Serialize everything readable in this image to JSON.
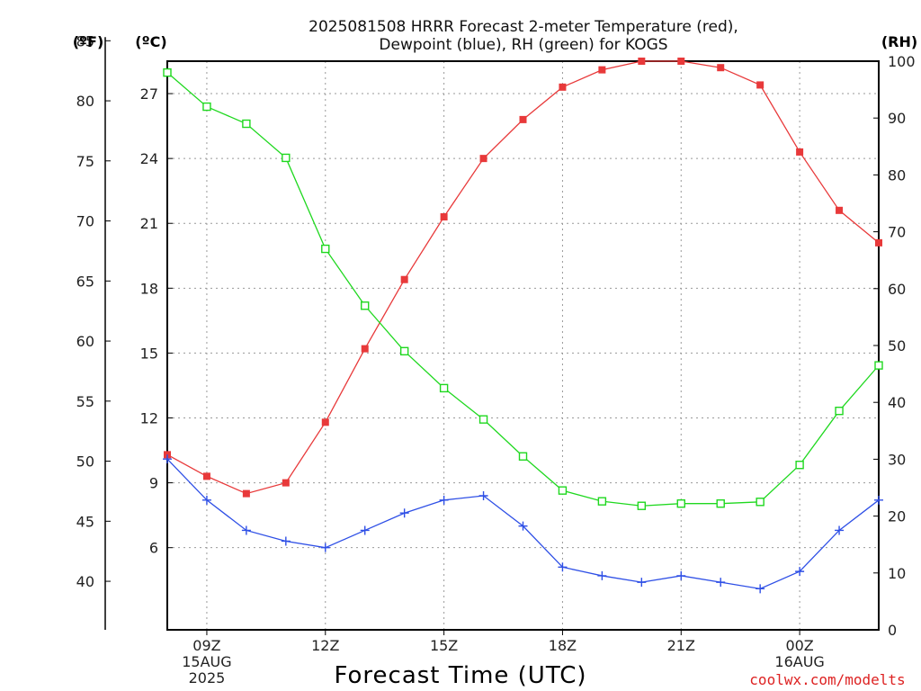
{
  "title_line1": "2025081508 HRRR Forecast 2-meter Temperature (red),",
  "title_line2": "Dewpoint (blue), RH (green) for KOGS",
  "units": {
    "fahrenheit": "(ºF)",
    "celsius": "(ºC)",
    "rh": "(RH)"
  },
  "xlabel": "Forecast Time (UTC)",
  "credit": "coolwx.com/modelts",
  "colors": {
    "temperature": "#e8393a",
    "dewpoint": "#2e4fe6",
    "rh": "#1fd81f",
    "grid": "#999999"
  },
  "chart_data": {
    "type": "line",
    "x_hours": [
      8,
      9,
      10,
      11,
      12,
      13,
      14,
      15,
      16,
      17,
      18,
      19,
      20,
      21,
      22,
      23,
      24,
      25,
      26
    ],
    "x_ticks": [
      {
        "hour": 9,
        "lines": [
          "09Z",
          "15AUG",
          "2025"
        ]
      },
      {
        "hour": 12,
        "lines": [
          "12Z"
        ]
      },
      {
        "hour": 15,
        "lines": [
          "15Z"
        ]
      },
      {
        "hour": 18,
        "lines": [
          "18Z"
        ]
      },
      {
        "hour": 21,
        "lines": [
          "21Z"
        ]
      },
      {
        "hour": 24,
        "lines": [
          "00Z",
          "16AUG"
        ]
      }
    ],
    "xlim": [
      8,
      26
    ],
    "celsius_axis": {
      "ylim": [
        2.2,
        28.5
      ],
      "ticks": [
        6,
        9,
        12,
        15,
        18,
        21,
        24,
        27
      ]
    },
    "fahrenheit_axis": {
      "ticks": [
        40,
        45,
        50,
        55,
        60,
        65,
        70,
        75,
        80,
        85
      ]
    },
    "rh_axis": {
      "ylim": [
        0,
        100
      ],
      "ticks": [
        0,
        10,
        20,
        30,
        40,
        50,
        60,
        70,
        80,
        90,
        100
      ]
    },
    "series": [
      {
        "name": "Temperature",
        "axis": "celsius",
        "marker": "filled-square",
        "values": [
          10.3,
          9.3,
          8.5,
          9.0,
          11.8,
          15.2,
          18.4,
          21.3,
          24.0,
          25.8,
          27.3,
          28.1,
          28.5,
          28.5,
          28.2,
          27.4,
          24.3,
          21.6,
          20.1
        ]
      },
      {
        "name": "Dewpoint",
        "axis": "celsius",
        "marker": "plus",
        "values": [
          10.1,
          8.2,
          6.8,
          6.3,
          6.0,
          6.8,
          7.6,
          8.2,
          8.4,
          7.0,
          5.1,
          4.7,
          4.4,
          4.7,
          4.4,
          4.1,
          4.9,
          6.8,
          8.2
        ]
      },
      {
        "name": "RH",
        "axis": "rh",
        "marker": "open-square",
        "values": [
          98,
          92,
          89,
          83,
          67,
          57,
          49,
          42.5,
          37,
          30.5,
          24.5,
          22.6,
          21.8,
          22.2,
          22.2,
          22.5,
          29,
          38.5,
          46.5
        ]
      }
    ]
  }
}
